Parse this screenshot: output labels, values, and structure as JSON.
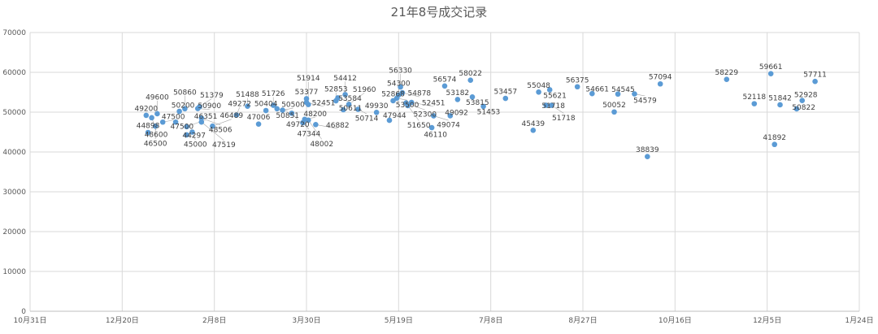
{
  "chart_data": {
    "type": "scatter",
    "title": "21年8号成交记录",
    "xlabel": "",
    "ylabel": "",
    "x_unit": "days since 10月31日",
    "xlim": [
      0,
      450
    ],
    "ylim": [
      0,
      70000
    ],
    "x_ticks": [
      {
        "value": 0,
        "label": "10月31日"
      },
      {
        "value": 50,
        "label": "12月20日"
      },
      {
        "value": 100,
        "label": "2月8日"
      },
      {
        "value": 150,
        "label": "3月30日"
      },
      {
        "value": 200,
        "label": "5月19日"
      },
      {
        "value": 250,
        "label": "7月8日"
      },
      {
        "value": 300,
        "label": "8月27日"
      },
      {
        "value": 350,
        "label": "10月16日"
      },
      {
        "value": 400,
        "label": "12月5日"
      },
      {
        "value": 450,
        "label": "1月24日"
      }
    ],
    "y_ticks": [
      "0",
      "10000",
      "20000",
      "30000",
      "40000",
      "50000",
      "60000",
      "70000"
    ],
    "grid": true,
    "legend": "none",
    "color": "#5b9bd5",
    "points": [
      [
        63,
        49200
      ],
      [
        64,
        44898
      ],
      [
        66,
        48600
      ],
      [
        68,
        46500
      ],
      [
        69,
        49600
      ],
      [
        72,
        47500
      ],
      [
        79,
        47500
      ],
      [
        81,
        50200
      ],
      [
        84,
        50860
      ],
      [
        85,
        44297
      ],
      [
        85,
        46351
      ],
      [
        88,
        45000
      ],
      [
        91,
        50900
      ],
      [
        92,
        51379
      ],
      [
        93,
        48506
      ],
      [
        93,
        47519
      ],
      [
        99,
        46489
      ],
      [
        112,
        49272
      ],
      [
        118,
        51488
      ],
      [
        124,
        47006
      ],
      [
        128,
        50404
      ],
      [
        132,
        51726
      ],
      [
        134,
        50851
      ],
      [
        137,
        50500
      ],
      [
        142,
        49720
      ],
      [
        148,
        47344
      ],
      [
        149,
        48200
      ],
      [
        150,
        53377
      ],
      [
        150,
        52451
      ],
      [
        151,
        51914
      ],
      [
        151,
        48002
      ],
      [
        155,
        46882
      ],
      [
        166,
        52853
      ],
      [
        167,
        53584
      ],
      [
        170,
        50611
      ],
      [
        171,
        54412
      ],
      [
        173,
        51960
      ],
      [
        178,
        50714
      ],
      [
        188,
        49930
      ],
      [
        195,
        47944
      ],
      [
        197,
        52868
      ],
      [
        199,
        53500
      ],
      [
        200,
        54300
      ],
      [
        201,
        56330
      ],
      [
        202,
        54878
      ],
      [
        204,
        52300
      ],
      [
        205,
        51650
      ],
      [
        207,
        52451
      ],
      [
        218,
        46110
      ],
      [
        219,
        49074
      ],
      [
        225,
        56574
      ],
      [
        228,
        49092
      ],
      [
        232,
        53182
      ],
      [
        239,
        58022
      ],
      [
        240,
        53815
      ],
      [
        246,
        51453
      ],
      [
        258,
        53457
      ],
      [
        273,
        45439
      ],
      [
        276,
        55048
      ],
      [
        282,
        55621
      ],
      [
        280,
        51718
      ],
      [
        283,
        51718
      ],
      [
        297,
        56375
      ],
      [
        305,
        54661
      ],
      [
        317,
        50052
      ],
      [
        319,
        54545
      ],
      [
        328,
        54579
      ],
      [
        335,
        38839
      ],
      [
        342,
        57094
      ],
      [
        378,
        58229
      ],
      [
        393,
        52118
      ],
      [
        402,
        59661
      ],
      [
        404,
        41892
      ],
      [
        407,
        51842
      ],
      [
        416,
        50822
      ],
      [
        419,
        52928
      ],
      [
        426,
        57711
      ]
    ]
  }
}
